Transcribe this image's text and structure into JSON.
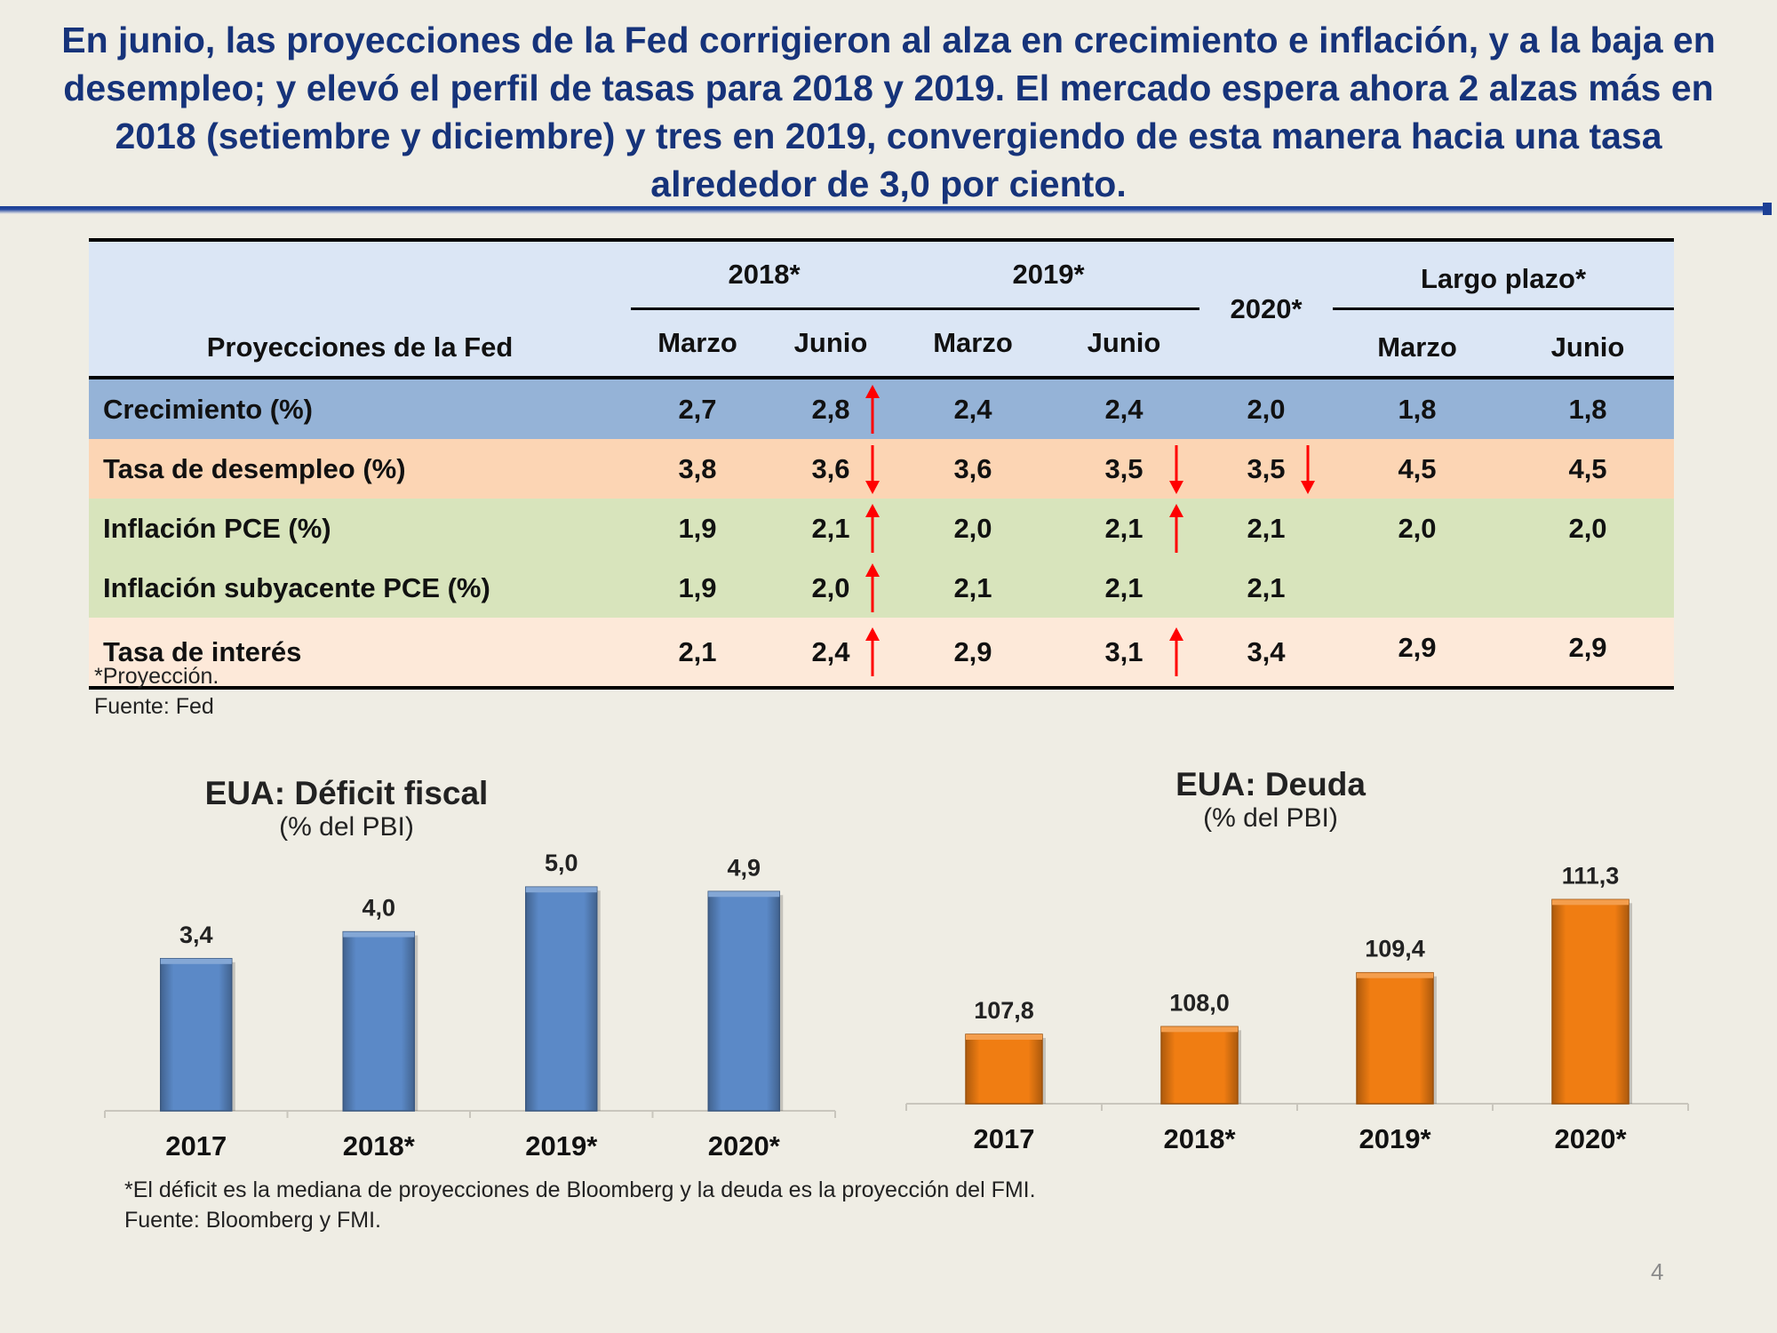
{
  "title": "En junio, las proyecciones de la Fed corrigieron al alza en crecimiento e inflación, y a la baja en desempleo; y elevó el perfil de tasas para 2018 y 2019. El mercado espera ahora 2 alzas más en 2018 (setiembre y diciembre) y tres en 2019, convergiendo de esta manera hacia una tasa alrededor de 3,0 por ciento.",
  "table": {
    "row_header": "Proyecciones de la Fed",
    "years": {
      "y2018": "2018*",
      "y2019": "2019*",
      "y2020": "2020*",
      "long": "Largo plazo*"
    },
    "sub": {
      "marzo": "Marzo",
      "junio": "Junio"
    },
    "rows": [
      {
        "label": "Crecimiento (%)",
        "m18": "2,7",
        "j18": "2,8",
        "m19": "2,4",
        "j19": "2,4",
        "y20": "2,0",
        "lpm": "1,8",
        "lpj": "1,8"
      },
      {
        "label": "Tasa de desempleo (%)",
        "m18": "3,8",
        "j18": "3,6",
        "m19": "3,6",
        "j19": "3,5",
        "y20": "3,5",
        "lpm": "4,5",
        "lpj": "4,5"
      },
      {
        "label": "Inflación PCE (%)",
        "m18": "1,9",
        "j18": "2,1",
        "m19": "2,0",
        "j19": "2,1",
        "y20": "2,1",
        "lpm": "2,0",
        "lpj": "2,0"
      },
      {
        "label": "Inflación subyacente PCE (%)",
        "m18": "1,9",
        "j18": "2,0",
        "m19": "2,1",
        "j19": "2,1",
        "y20": "2,1",
        "lpm": "",
        "lpj": ""
      },
      {
        "label": "Tasa de interés",
        "m18": "2,1",
        "j18": "2,4",
        "m19": "2,9",
        "j19": "3,1",
        "y20": "3,4",
        "lpm": "2,9",
        "lpj": "2,9"
      }
    ],
    "note1": "*Proyección.",
    "note2": "Fuente: Fed"
  },
  "colors": {
    "title": "#16337a",
    "arrow": "#ff0000",
    "deficit_bar": "#5b89c7",
    "debt_bar": "#f07d12"
  },
  "chart_data": [
    {
      "type": "bar",
      "title": "EUA: Déficit fiscal",
      "subtitle": "(% del PBI)",
      "categories": [
        "2017",
        "2018*",
        "2019*",
        "2020*"
      ],
      "values": [
        3.4,
        4.0,
        5.0,
        4.9
      ],
      "labels": [
        "3,4",
        "4,0",
        "5,0",
        "4,9"
      ],
      "ylim": [
        0,
        5.6
      ]
    },
    {
      "type": "bar",
      "title": "EUA: Deuda",
      "subtitle": "(% del PBI)",
      "categories": [
        "2017",
        "2018*",
        "2019*",
        "2020*"
      ],
      "values": [
        107.8,
        108.0,
        109.4,
        111.3
      ],
      "labels": [
        "107,8",
        "108,0",
        "109,4",
        "111,3"
      ],
      "ylim": [
        106.0,
        112.0
      ]
    }
  ],
  "footnote1": "*El déficit es la mediana de proyecciones de Bloomberg y la deuda es la proyección del FMI.",
  "footnote2": "Fuente: Bloomberg y FMI.",
  "page_number": "4"
}
